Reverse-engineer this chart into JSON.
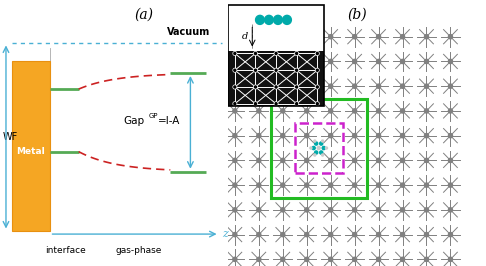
{
  "panel_a_label": "(a)",
  "panel_b_label": "(b)",
  "vacuum_label": "Vacuum",
  "metal_label": "Metal",
  "wf_label": "WF",
  "interface_label": "interface",
  "gas_phase_label": "gas-phase",
  "z_label": "z",
  "d_label": "d",
  "metal_color": "#F5A623",
  "metal_edge_color": "#e89010",
  "bg_color": "#ffffff",
  "grid_color": "#808080",
  "green_rect_color": "#22bb22",
  "magenta_rect_color": "#cc22cc",
  "molecule_color_c": "#00aaaa",
  "molecule_color_h": "#cccccc",
  "blue_color": "#4ab0d4",
  "red_dash_color": "#cc2222",
  "green_level_color": "#55aa55",
  "gap_superscript": "GP",
  "gap_text": "Gap",
  "gap_suffix": "=I-A"
}
